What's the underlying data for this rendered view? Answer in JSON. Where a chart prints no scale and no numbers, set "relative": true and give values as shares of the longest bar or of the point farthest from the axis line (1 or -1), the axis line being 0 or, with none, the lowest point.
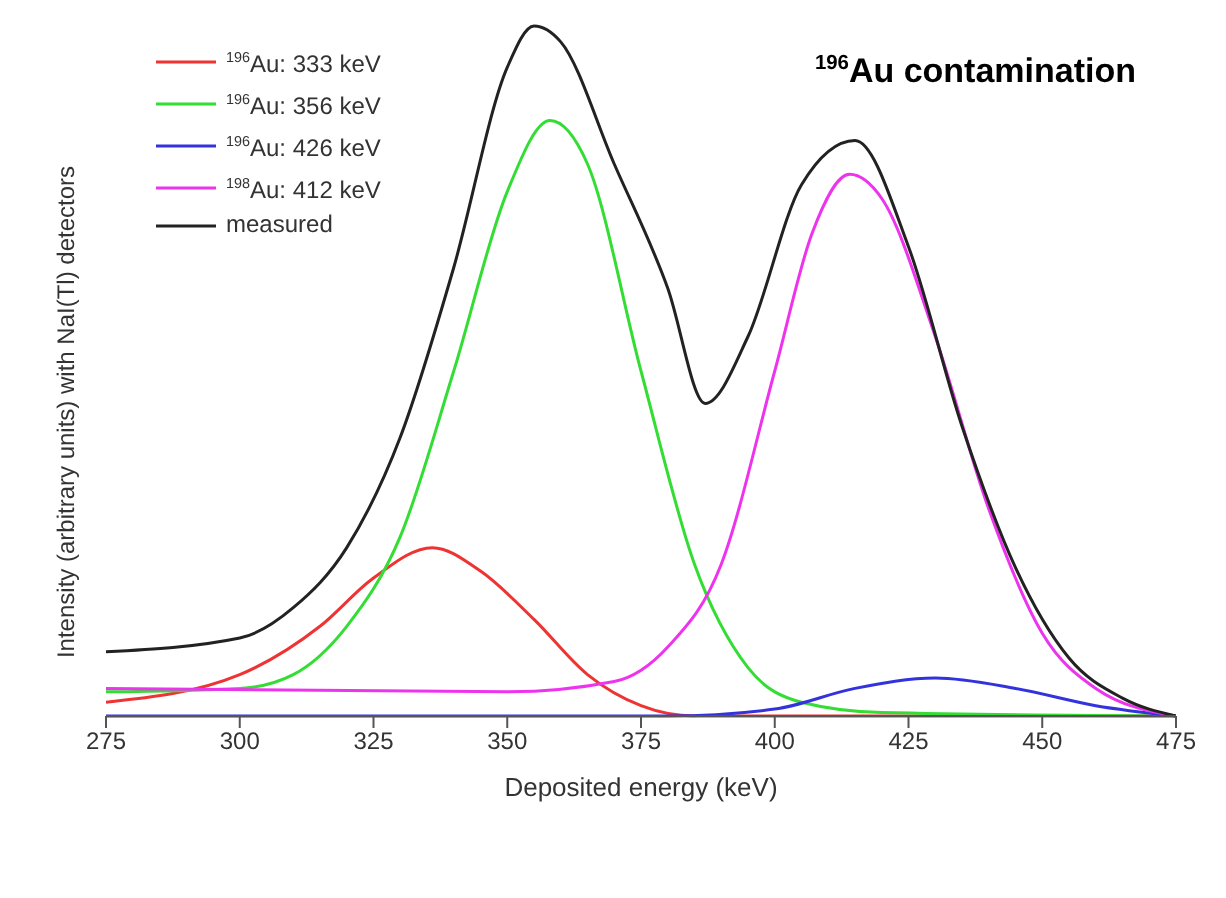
{
  "chart_data": {
    "type": "line",
    "title": "$^{196}$Au contamination",
    "xlabel": "Deposited energy  (keV)",
    "ylabel": "Intensity (arbitrary units) with NaI(Tl) detectors",
    "relative": true,
    "xlim": [
      275,
      475
    ],
    "xticks": [
      275,
      300,
      325,
      350,
      375,
      400,
      425,
      450,
      475
    ],
    "grid": false,
    "legend": "top left",
    "marker": "none",
    "line_style": "solid",
    "series": [
      {
        "name": "$^{196}$Au: 333 keV",
        "color": "#ee3333",
        "x": [
          275,
          300,
          315,
          325,
          336,
          345,
          355,
          365,
          375,
          385,
          475
        ],
        "values": [
          0.02,
          0.06,
          0.13,
          0.2,
          0.244,
          0.21,
          0.14,
          0.06,
          0.015,
          0,
          0
        ]
      },
      {
        "name": "$^{196}$Au: 356 keV",
        "color": "#33dd33",
        "x": [
          275,
          300,
          310,
          320,
          330,
          340,
          350,
          358,
          365,
          375,
          385,
          395,
          405,
          420,
          475
        ],
        "values": [
          0.035,
          0.04,
          0.06,
          0.13,
          0.26,
          0.5,
          0.76,
          0.863,
          0.8,
          0.5,
          0.22,
          0.07,
          0.02,
          0.005,
          0
        ]
      },
      {
        "name": "$^{196}$Au: 426 keV",
        "color": "#3333dd",
        "x": [
          275,
          380,
          400,
          415,
          430,
          445,
          460,
          475
        ],
        "values": [
          0,
          0,
          0.01,
          0.04,
          0.055,
          0.04,
          0.015,
          0
        ]
      },
      {
        "name": "$^{198}$Au: 412 keV",
        "color": "#ee33ee",
        "x": [
          275,
          350,
          370,
          380,
          390,
          400,
          407,
          414,
          420,
          430,
          440,
          450,
          460,
          475
        ],
        "values": [
          0.04,
          0.035,
          0.05,
          0.1,
          0.22,
          0.5,
          0.7,
          0.785,
          0.75,
          0.55,
          0.3,
          0.12,
          0.04,
          0
        ]
      },
      {
        "name": "measured",
        "color": "#222222",
        "x": [
          275,
          300,
          310,
          320,
          330,
          340,
          350,
          355,
          360,
          370,
          380,
          387,
          395,
          405,
          415,
          425,
          435,
          445,
          455,
          465,
          475
        ],
        "values": [
          0.093,
          0.113,
          0.157,
          0.244,
          0.404,
          0.65,
          0.94,
          1,
          0.977,
          0.8,
          0.62,
          0.453,
          0.55,
          0.77,
          0.834,
          0.68,
          0.42,
          0.215,
          0.084,
          0.026,
          0
        ]
      }
    ]
  }
}
